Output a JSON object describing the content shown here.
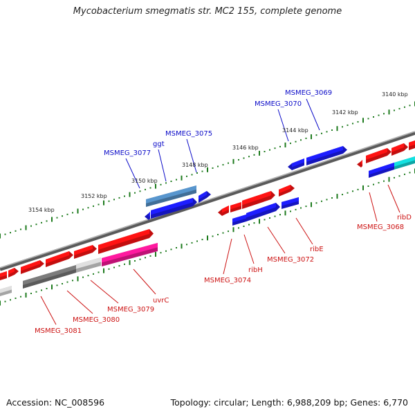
{
  "title": "Mycobacterium smegmatis str. MC2 155, complete genome",
  "footer": {
    "accession": "Accession: NC_008596",
    "summary": "Topology: circular; Length: 6,988,209 bp; Genes: 6,770"
  },
  "colors": {
    "forward_gene": "#ee1111",
    "reverse_gene": "#1a1ae6",
    "rna_gene": "#4f86b8",
    "pseudo_dark": "#6f6f6f",
    "pseudo_light": "#c8c8c8",
    "highlight": "#e8168e",
    "cyan_gene": "#11c9c9",
    "tick": "#1c7a1c",
    "backbone": "#777777",
    "label_blue": "#0a0ac8",
    "label_red": "#cc1111"
  },
  "axis_ticks": [
    "3140 kbp",
    "3142 kbp",
    "3144 kbp",
    "3146 kbp",
    "3148 kbp",
    "3150 kbp",
    "3152 kbp",
    "3154 kbp"
  ],
  "labels_top": [
    "MSMEG_3069",
    "MSMEG_3070",
    "MSMEG_3075",
    "ggt",
    "MSMEG_3077"
  ],
  "labels_bottom": [
    "ribD",
    "MSMEG_3068",
    "ribE",
    "MSMEG_3072",
    "ribH",
    "MSMEG_3074",
    "uvrC",
    "MSMEG_3079",
    "MSMEG_3080",
    "MSMEG_3081"
  ]
}
